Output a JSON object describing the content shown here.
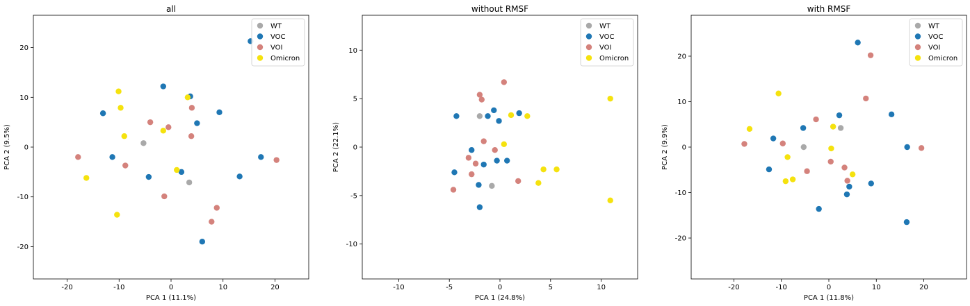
{
  "colors": {
    "WT": "#a9a9a9",
    "VOC": "#1f77b4",
    "VOI": "#d4827c",
    "Omicron": "#f5e20e"
  },
  "legend": [
    {
      "key": "WT",
      "label": "WT"
    },
    {
      "key": "VOC",
      "label": "VOC"
    },
    {
      "key": "VOI",
      "label": "VOI"
    },
    {
      "key": "Omicron",
      "label": "Omicron"
    }
  ],
  "chart_data": [
    {
      "type": "scatter",
      "title": "all",
      "xlabel": "PCA 1 (11.1%)",
      "ylabel": "PCA 2 (9.5%)",
      "xlim": [
        -26.5,
        26.5
      ],
      "ylim": [
        -26.5,
        26.5
      ],
      "xticks": [
        -20,
        -10,
        0,
        10,
        20
      ],
      "yticks": [
        -20,
        -10,
        0,
        10,
        20
      ],
      "legend_position": "top-right",
      "series": [
        {
          "name": "WT",
          "points": [
            [
              -5.3,
              0.8
            ],
            [
              3.5,
              -7.1
            ]
          ]
        },
        {
          "name": "VOC",
          "points": [
            [
              15.3,
              21.3
            ],
            [
              -1.5,
              12.2
            ],
            [
              3.7,
              10.2
            ],
            [
              -13.1,
              6.8
            ],
            [
              9.3,
              7.0
            ],
            [
              5.0,
              4.8
            ],
            [
              -11.3,
              -2.0
            ],
            [
              17.3,
              -2.0
            ],
            [
              -4.3,
              -6.0
            ],
            [
              2.0,
              -5.0
            ],
            [
              13.2,
              -5.9
            ],
            [
              6.0,
              -19.0
            ]
          ]
        },
        {
          "name": "VOI",
          "points": [
            [
              -4.0,
              5.0
            ],
            [
              4.0,
              7.9
            ],
            [
              -0.5,
              4.0
            ],
            [
              3.9,
              2.2
            ],
            [
              -17.9,
              -2.0
            ],
            [
              -8.8,
              -3.7
            ],
            [
              20.3,
              -2.6
            ],
            [
              -1.3,
              -9.9
            ],
            [
              8.8,
              -12.2
            ],
            [
              7.8,
              -15.0
            ]
          ]
        },
        {
          "name": "Omicron",
          "points": [
            [
              -10.1,
              11.2
            ],
            [
              3.2,
              10.0
            ],
            [
              -9.7,
              7.9
            ],
            [
              -1.5,
              3.3
            ],
            [
              -9.0,
              2.2
            ],
            [
              1.1,
              -4.6
            ],
            [
              -16.3,
              -6.2
            ],
            [
              -10.4,
              -13.6
            ]
          ]
        }
      ]
    },
    {
      "type": "scatter",
      "title": "without RMSF",
      "xlabel": "PCA 1 (24.8%)",
      "ylabel": "PCA 2 (22.1%)",
      "xlim": [
        -13.6,
        13.6
      ],
      "ylim": [
        -13.6,
        13.6
      ],
      "xticks": [
        -10,
        -5,
        0,
        5,
        10
      ],
      "yticks": [
        -10,
        -5,
        0,
        5,
        10
      ],
      "legend_position": "top-right",
      "series": [
        {
          "name": "WT",
          "points": [
            [
              -2.0,
              3.2
            ],
            [
              -0.8,
              -4.0
            ]
          ]
        },
        {
          "name": "VOC",
          "points": [
            [
              -4.3,
              3.2
            ],
            [
              -0.6,
              3.8
            ],
            [
              1.9,
              3.5
            ],
            [
              -1.2,
              3.2
            ],
            [
              -0.1,
              2.7
            ],
            [
              -2.8,
              -0.3
            ],
            [
              -0.3,
              -1.4
            ],
            [
              0.7,
              -1.4
            ],
            [
              -1.6,
              -1.8
            ],
            [
              -4.5,
              -2.6
            ],
            [
              -2.1,
              -3.9
            ],
            [
              -2.0,
              -6.2
            ]
          ]
        },
        {
          "name": "VOI",
          "points": [
            [
              0.4,
              6.7
            ],
            [
              -2.0,
              5.4
            ],
            [
              -1.8,
              4.9
            ],
            [
              -1.6,
              0.6
            ],
            [
              -0.5,
              -0.3
            ],
            [
              -3.1,
              -1.1
            ],
            [
              -2.4,
              -1.7
            ],
            [
              -2.8,
              -2.8
            ],
            [
              1.8,
              -3.5
            ],
            [
              -4.6,
              -4.4
            ]
          ]
        },
        {
          "name": "Omicron",
          "points": [
            [
              10.9,
              5.0
            ],
            [
              1.1,
              3.3
            ],
            [
              2.7,
              3.2
            ],
            [
              0.4,
              0.3
            ],
            [
              4.3,
              -2.3
            ],
            [
              5.6,
              -2.3
            ],
            [
              3.8,
              -3.7
            ],
            [
              10.9,
              -5.5
            ]
          ]
        }
      ]
    },
    {
      "type": "scatter",
      "title": "with RMSF",
      "xlabel": "PCA 1 (11.8%)",
      "ylabel": "PCA 2 (9.9%)",
      "xlim": [
        -29,
        29
      ],
      "ylim": [
        -29,
        29
      ],
      "xticks": [
        -20,
        -10,
        0,
        10,
        20
      ],
      "yticks": [
        -20,
        -10,
        0,
        10,
        20
      ],
      "legend_position": "top-right",
      "series": [
        {
          "name": "WT",
          "points": [
            [
              2.5,
              4.2
            ],
            [
              -5.3,
              0.0
            ]
          ]
        },
        {
          "name": "VOC",
          "points": [
            [
              6.1,
              23.0
            ],
            [
              13.2,
              7.2
            ],
            [
              2.2,
              7.0
            ],
            [
              -5.4,
              4.2
            ],
            [
              -11.7,
              1.9
            ],
            [
              16.5,
              0.0
            ],
            [
              -12.6,
              -4.9
            ],
            [
              8.9,
              -8.0
            ],
            [
              4.3,
              -8.7
            ],
            [
              3.8,
              -10.4
            ],
            [
              -2.1,
              -13.6
            ],
            [
              16.4,
              -16.5
            ]
          ]
        },
        {
          "name": "VOI",
          "points": [
            [
              8.8,
              20.2
            ],
            [
              7.8,
              10.7
            ],
            [
              -2.7,
              6.1
            ],
            [
              -17.8,
              0.7
            ],
            [
              -9.7,
              0.8
            ],
            [
              19.5,
              -0.2
            ],
            [
              0.4,
              -3.2
            ],
            [
              3.3,
              -4.5
            ],
            [
              -4.6,
              -5.3
            ],
            [
              3.9,
              -7.4
            ]
          ]
        },
        {
          "name": "Omicron",
          "points": [
            [
              -10.6,
              11.8
            ],
            [
              -16.7,
              4.0
            ],
            [
              0.9,
              4.5
            ],
            [
              0.5,
              -0.3
            ],
            [
              -8.7,
              -2.2
            ],
            [
              5.0,
              -6.0
            ],
            [
              -7.6,
              -7.1
            ],
            [
              -9.1,
              -7.5
            ]
          ]
        }
      ]
    }
  ]
}
